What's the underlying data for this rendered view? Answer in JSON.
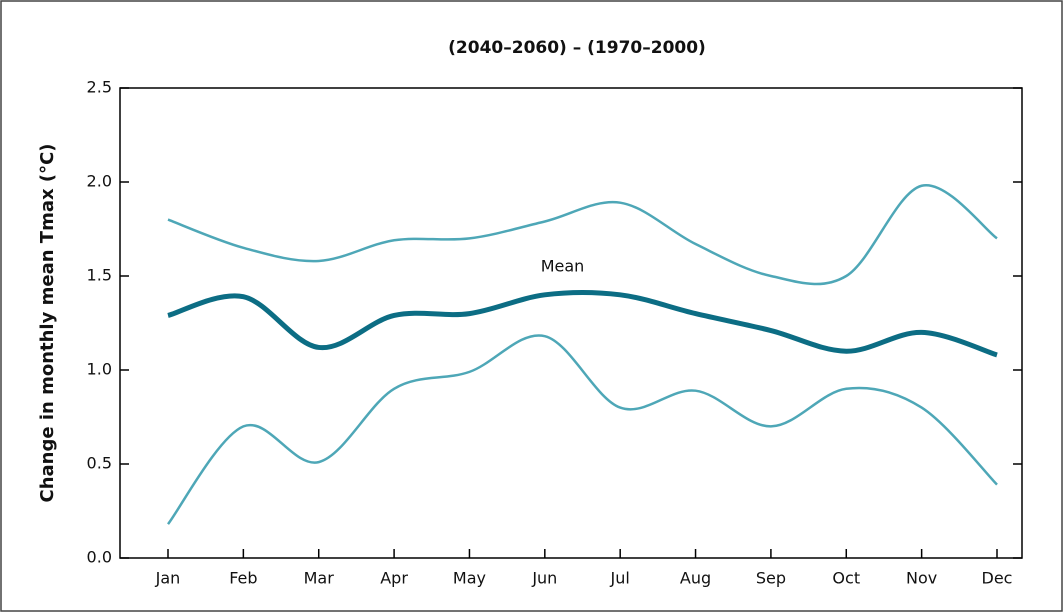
{
  "chart_data": {
    "type": "line",
    "title": "(2040–2060) – (1970–2000)",
    "y_label": "Change in monthly mean Tmax (°C)",
    "categories": [
      "Jan",
      "Feb",
      "Mar",
      "Apr",
      "May",
      "Jun",
      "Jul",
      "Aug",
      "Sep",
      "Oct",
      "Nov",
      "Dec"
    ],
    "series": [
      {
        "color": "#4ea7b7",
        "values": [
          1.8,
          1.65,
          1.58,
          1.69,
          1.7,
          1.79,
          1.89,
          1.67,
          1.5,
          1.5,
          1.98,
          1.7
        ]
      },
      {
        "name": "Mean",
        "color": "#0c6d84",
        "values": [
          1.29,
          1.39,
          1.12,
          1.29,
          1.3,
          1.4,
          1.4,
          1.3,
          1.21,
          1.1,
          1.2,
          1.08
        ]
      },
      {
        "color": "#4ea7b7",
        "values": [
          0.18,
          0.7,
          0.51,
          0.9,
          0.99,
          1.18,
          0.8,
          0.89,
          0.7,
          0.9,
          0.8,
          0.39
        ]
      }
    ],
    "ylim": [
      0,
      2.5
    ],
    "yticks": [
      {
        "value": 0,
        "label": "0.0"
      },
      0.5,
      {
        "value": 1,
        "label": "1.0"
      },
      1.5,
      {
        "value": 2,
        "label": "2.0"
      },
      2.5
    ]
  }
}
